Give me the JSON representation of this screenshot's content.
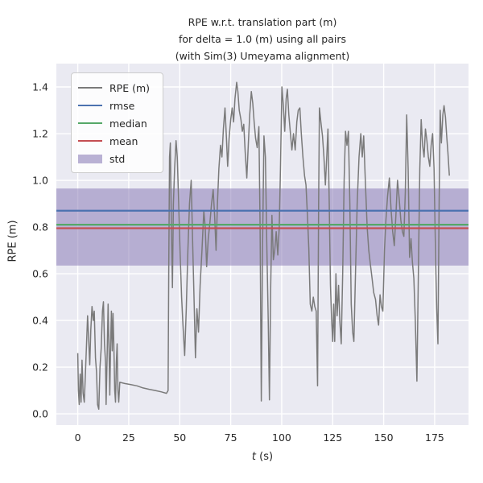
{
  "chart_data": {
    "type": "line",
    "title_lines": [
      "RPE w.r.t. translation part (m)",
      "for delta = 1.0 (m) using all pairs",
      "(with Sim(3) Umeyama alignment)"
    ],
    "xlabel_var": "t",
    "xlabel_rest": " (s)",
    "ylabel": "RPE (m)",
    "xlim": [
      -10.5,
      191.6
    ],
    "ylim": [
      -0.048,
      1.5
    ],
    "xtick_values": [
      0,
      25,
      50,
      75,
      100,
      125,
      150,
      175
    ],
    "xtick_labels": [
      "0",
      "25",
      "50",
      "75",
      "100",
      "125",
      "150",
      "175"
    ],
    "ytick_values": [
      0.0,
      0.2,
      0.4,
      0.6,
      0.8,
      1.0,
      1.2,
      1.4
    ],
    "ytick_labels": [
      "0.0",
      "0.2",
      "0.4",
      "0.6",
      "0.8",
      "1.0",
      "1.2",
      "1.4"
    ],
    "grid": true,
    "colors": {
      "plot_background": "#EAEAF2",
      "gridline": "#FFFFFF",
      "rpe_line": "#7a7a7a",
      "rmse": "#4C72B0",
      "median": "#55A868",
      "mean": "#C44E52",
      "std": "#8172B2",
      "text": "#262626"
    },
    "stats": {
      "rmse": 0.87,
      "median": 0.81,
      "mean": 0.795,
      "std_band": [
        0.635,
        0.965
      ]
    },
    "stat_lines": [
      {
        "name": "rmse",
        "value": 0.87,
        "color": "#4C72B0"
      },
      {
        "name": "median",
        "value": 0.81,
        "color": "#55A868"
      },
      {
        "name": "mean",
        "value": 0.795,
        "color": "#C44E52"
      }
    ],
    "legend": {
      "position": "upper-left",
      "entries": [
        {
          "label": "RPE (m)",
          "type": "line",
          "color": "#7a7a7a"
        },
        {
          "label": "rmse",
          "type": "line",
          "color": "#4C72B0"
        },
        {
          "label": "median",
          "type": "line",
          "color": "#55A868"
        },
        {
          "label": "mean",
          "type": "line",
          "color": "#C44E52"
        },
        {
          "label": "std",
          "type": "patch",
          "color": "#8172B2"
        }
      ]
    },
    "series": [
      {
        "name": "RPE (m)",
        "color": "#7a7a7a",
        "points": [
          [
            0,
            0.26
          ],
          [
            0.3,
            0.1
          ],
          [
            0.7,
            0.04
          ],
          [
            1.2,
            0.17
          ],
          [
            1.6,
            0.05
          ],
          [
            2.1,
            0.23
          ],
          [
            2.6,
            0.09
          ],
          [
            3.2,
            0.05
          ],
          [
            3.8,
            0.18
          ],
          [
            4.3,
            0.3
          ],
          [
            4.8,
            0.42
          ],
          [
            5.3,
            0.33
          ],
          [
            5.9,
            0.21
          ],
          [
            6.4,
            0.36
          ],
          [
            7,
            0.46
          ],
          [
            7.6,
            0.4
          ],
          [
            8.1,
            0.44
          ],
          [
            8.7,
            0.24
          ],
          [
            9.2,
            0.18
          ],
          [
            9.7,
            0.04
          ],
          [
            10.3,
            0.02
          ],
          [
            10.9,
            0.2
          ],
          [
            11.5,
            0.28
          ],
          [
            12.1,
            0.44
          ],
          [
            12.6,
            0.48
          ],
          [
            13.1,
            0.3
          ],
          [
            13.6,
            0.22
          ],
          [
            13.9,
            0.04
          ],
          [
            14.4,
            0.25
          ],
          [
            14.9,
            0.47
          ],
          [
            15.3,
            0.28
          ],
          [
            15.7,
            0.08
          ],
          [
            16.1,
            0.3
          ],
          [
            16.5,
            0.44
          ],
          [
            16.9,
            0.27
          ],
          [
            17.3,
            0.43
          ],
          [
            17.7,
            0.3
          ],
          [
            18.1,
            0.1
          ],
          [
            18.5,
            0.05
          ],
          [
            18.9,
            0.22
          ],
          [
            19.3,
            0.3
          ],
          [
            19.7,
            0.1
          ],
          [
            20.1,
            0.05
          ],
          [
            20.6,
            0.135
          ],
          [
            23,
            0.13
          ],
          [
            26,
            0.125
          ],
          [
            29,
            0.12
          ],
          [
            32,
            0.111
          ],
          [
            35,
            0.105
          ],
          [
            38,
            0.1
          ],
          [
            41,
            0.094
          ],
          [
            43.5,
            0.088
          ],
          [
            44.3,
            0.1
          ],
          [
            44.6,
            0.6
          ],
          [
            45,
            1.1
          ],
          [
            45.4,
            1.16
          ],
          [
            45.9,
            0.8
          ],
          [
            46.4,
            0.54
          ],
          [
            46.9,
            0.9
          ],
          [
            47.5,
            1.05
          ],
          [
            48.2,
            1.17
          ],
          [
            48.8,
            1.1
          ],
          [
            49.5,
            0.9
          ],
          [
            50.2,
            0.68
          ],
          [
            50.9,
            0.5
          ],
          [
            51.6,
            0.38
          ],
          [
            52.4,
            0.25
          ],
          [
            53.2,
            0.45
          ],
          [
            54,
            0.7
          ],
          [
            54.8,
            0.9
          ],
          [
            55.6,
            1.0
          ],
          [
            56.3,
            0.75
          ],
          [
            57,
            0.5
          ],
          [
            57.7,
            0.24
          ],
          [
            58.4,
            0.45
          ],
          [
            59.2,
            0.35
          ],
          [
            60,
            0.55
          ],
          [
            60.9,
            0.7
          ],
          [
            61.8,
            0.87
          ],
          [
            62.5,
            0.8
          ],
          [
            63.2,
            0.63
          ],
          [
            64,
            0.75
          ],
          [
            64.8,
            0.82
          ],
          [
            65.6,
            0.9
          ],
          [
            66.4,
            0.96
          ],
          [
            67.1,
            0.85
          ],
          [
            67.8,
            0.7
          ],
          [
            68.5,
            0.9
          ],
          [
            69.2,
            1.05
          ],
          [
            70,
            1.15
          ],
          [
            70.7,
            1.1
          ],
          [
            71.4,
            1.22
          ],
          [
            72.2,
            1.31
          ],
          [
            72.9,
            1.18
          ],
          [
            73.5,
            1.06
          ],
          [
            74.2,
            1.18
          ],
          [
            75,
            1.26
          ],
          [
            75.7,
            1.31
          ],
          [
            76.4,
            1.25
          ],
          [
            77.1,
            1.35
          ],
          [
            77.9,
            1.42
          ],
          [
            78.5,
            1.38
          ],
          [
            79.2,
            1.3
          ],
          [
            80,
            1.26
          ],
          [
            80.7,
            1.21
          ],
          [
            81.4,
            1.24
          ],
          [
            82.1,
            1.12
          ],
          [
            82.9,
            1.01
          ],
          [
            83.6,
            1.15
          ],
          [
            84.3,
            1.28
          ],
          [
            85.1,
            1.38
          ],
          [
            85.8,
            1.33
          ],
          [
            86.5,
            1.25
          ],
          [
            87.2,
            1.18
          ],
          [
            88,
            1.14
          ],
          [
            88.8,
            1.23
          ],
          [
            89.4,
            0.8
          ],
          [
            90,
            0.055
          ],
          [
            90.6,
            0.7
          ],
          [
            91.3,
            1.19
          ],
          [
            92,
            1.1
          ],
          [
            92.7,
            0.73
          ],
          [
            93.4,
            0.4
          ],
          [
            94,
            0.06
          ],
          [
            94.6,
            0.55
          ],
          [
            95.2,
            0.85
          ],
          [
            95.9,
            0.66
          ],
          [
            96.6,
            0.7
          ],
          [
            97.3,
            0.78
          ],
          [
            98.1,
            0.68
          ],
          [
            98.8,
            0.8
          ],
          [
            99.4,
            1.05
          ],
          [
            100.1,
            1.4
          ],
          [
            100.8,
            1.32
          ],
          [
            101.5,
            1.21
          ],
          [
            102.2,
            1.35
          ],
          [
            102.8,
            1.39
          ],
          [
            103.5,
            1.28
          ],
          [
            104.3,
            1.2
          ],
          [
            105,
            1.13
          ],
          [
            105.8,
            1.2
          ],
          [
            106.6,
            1.13
          ],
          [
            107.4,
            1.25
          ],
          [
            108.1,
            1.3
          ],
          [
            108.9,
            1.31
          ],
          [
            109.6,
            1.2
          ],
          [
            110.4,
            1.1
          ],
          [
            111.2,
            1.02
          ],
          [
            111.9,
            0.98
          ],
          [
            112.6,
            0.85
          ],
          [
            113.3,
            0.71
          ],
          [
            114,
            0.47
          ],
          [
            114.8,
            0.44
          ],
          [
            115.5,
            0.5
          ],
          [
            116.2,
            0.46
          ],
          [
            116.9,
            0.44
          ],
          [
            117.6,
            0.12
          ],
          [
            118.1,
            0.9
          ],
          [
            118.5,
            1.31
          ],
          [
            119.2,
            1.25
          ],
          [
            120,
            1.19
          ],
          [
            120.7,
            1.1
          ],
          [
            121.4,
            0.98
          ],
          [
            122.1,
            1.1
          ],
          [
            122.7,
            1.22
          ],
          [
            123.3,
            0.9
          ],
          [
            123.9,
            0.55
          ],
          [
            124.5,
            0.4
          ],
          [
            125,
            0.31
          ],
          [
            125.5,
            0.47
          ],
          [
            126,
            0.31
          ],
          [
            126.6,
            0.6
          ],
          [
            127.2,
            0.42
          ],
          [
            127.9,
            0.55
          ],
          [
            128.5,
            0.4
          ],
          [
            129.2,
            0.3
          ],
          [
            129.9,
            0.6
          ],
          [
            130.6,
            1.0
          ],
          [
            131.3,
            1.21
          ],
          [
            132,
            1.15
          ],
          [
            132.7,
            1.21
          ],
          [
            133.4,
            0.9
          ],
          [
            134.1,
            0.47
          ],
          [
            134.8,
            0.35
          ],
          [
            135.4,
            0.31
          ],
          [
            136.2,
            0.6
          ],
          [
            137,
            0.9
          ],
          [
            137.9,
            1.1
          ],
          [
            138.8,
            1.2
          ],
          [
            139.5,
            1.1
          ],
          [
            140.2,
            1.19
          ],
          [
            141,
            1.0
          ],
          [
            141.9,
            0.8
          ],
          [
            142.7,
            0.7
          ],
          [
            143.5,
            0.64
          ],
          [
            144.3,
            0.58
          ],
          [
            145.1,
            0.52
          ],
          [
            146,
            0.49
          ],
          [
            146.8,
            0.42
          ],
          [
            147.5,
            0.38
          ],
          [
            148.2,
            0.51
          ],
          [
            148.9,
            0.46
          ],
          [
            149.6,
            0.44
          ],
          [
            150.4,
            0.7
          ],
          [
            151.1,
            0.83
          ],
          [
            151.9,
            0.93
          ],
          [
            152.8,
            1.01
          ],
          [
            153.6,
            0.88
          ],
          [
            154.4,
            0.78
          ],
          [
            155.2,
            0.72
          ],
          [
            156,
            0.85
          ],
          [
            156.8,
            1.0
          ],
          [
            157.6,
            0.92
          ],
          [
            158.4,
            0.83
          ],
          [
            159.2,
            0.78
          ],
          [
            159.9,
            0.76
          ],
          [
            160.6,
            0.95
          ],
          [
            161.3,
            1.28
          ],
          [
            162,
            1.05
          ],
          [
            162.7,
            0.67
          ],
          [
            163.4,
            0.75
          ],
          [
            164.1,
            0.65
          ],
          [
            164.8,
            0.58
          ],
          [
            165.5,
            0.4
          ],
          [
            166.3,
            0.14
          ],
          [
            167,
            0.6
          ],
          [
            167.7,
            1.05
          ],
          [
            168.4,
            1.26
          ],
          [
            169.1,
            1.15
          ],
          [
            169.8,
            1.1
          ],
          [
            170.5,
            1.22
          ],
          [
            171.2,
            1.17
          ],
          [
            171.9,
            1.1
          ],
          [
            172.6,
            1.06
          ],
          [
            173.3,
            1.15
          ],
          [
            174,
            1.2
          ],
          [
            174.7,
            1.05
          ],
          [
            175.4,
            0.68
          ],
          [
            176,
            0.45
          ],
          [
            176.6,
            0.3
          ],
          [
            177.2,
            0.9
          ],
          [
            177.7,
            1.3
          ],
          [
            178.3,
            1.16
          ],
          [
            179,
            1.28
          ],
          [
            179.6,
            1.32
          ],
          [
            180.3,
            1.27
          ],
          [
            180.9,
            1.19
          ],
          [
            181.5,
            1.12
          ],
          [
            182.2,
            1.02
          ]
        ]
      }
    ]
  }
}
